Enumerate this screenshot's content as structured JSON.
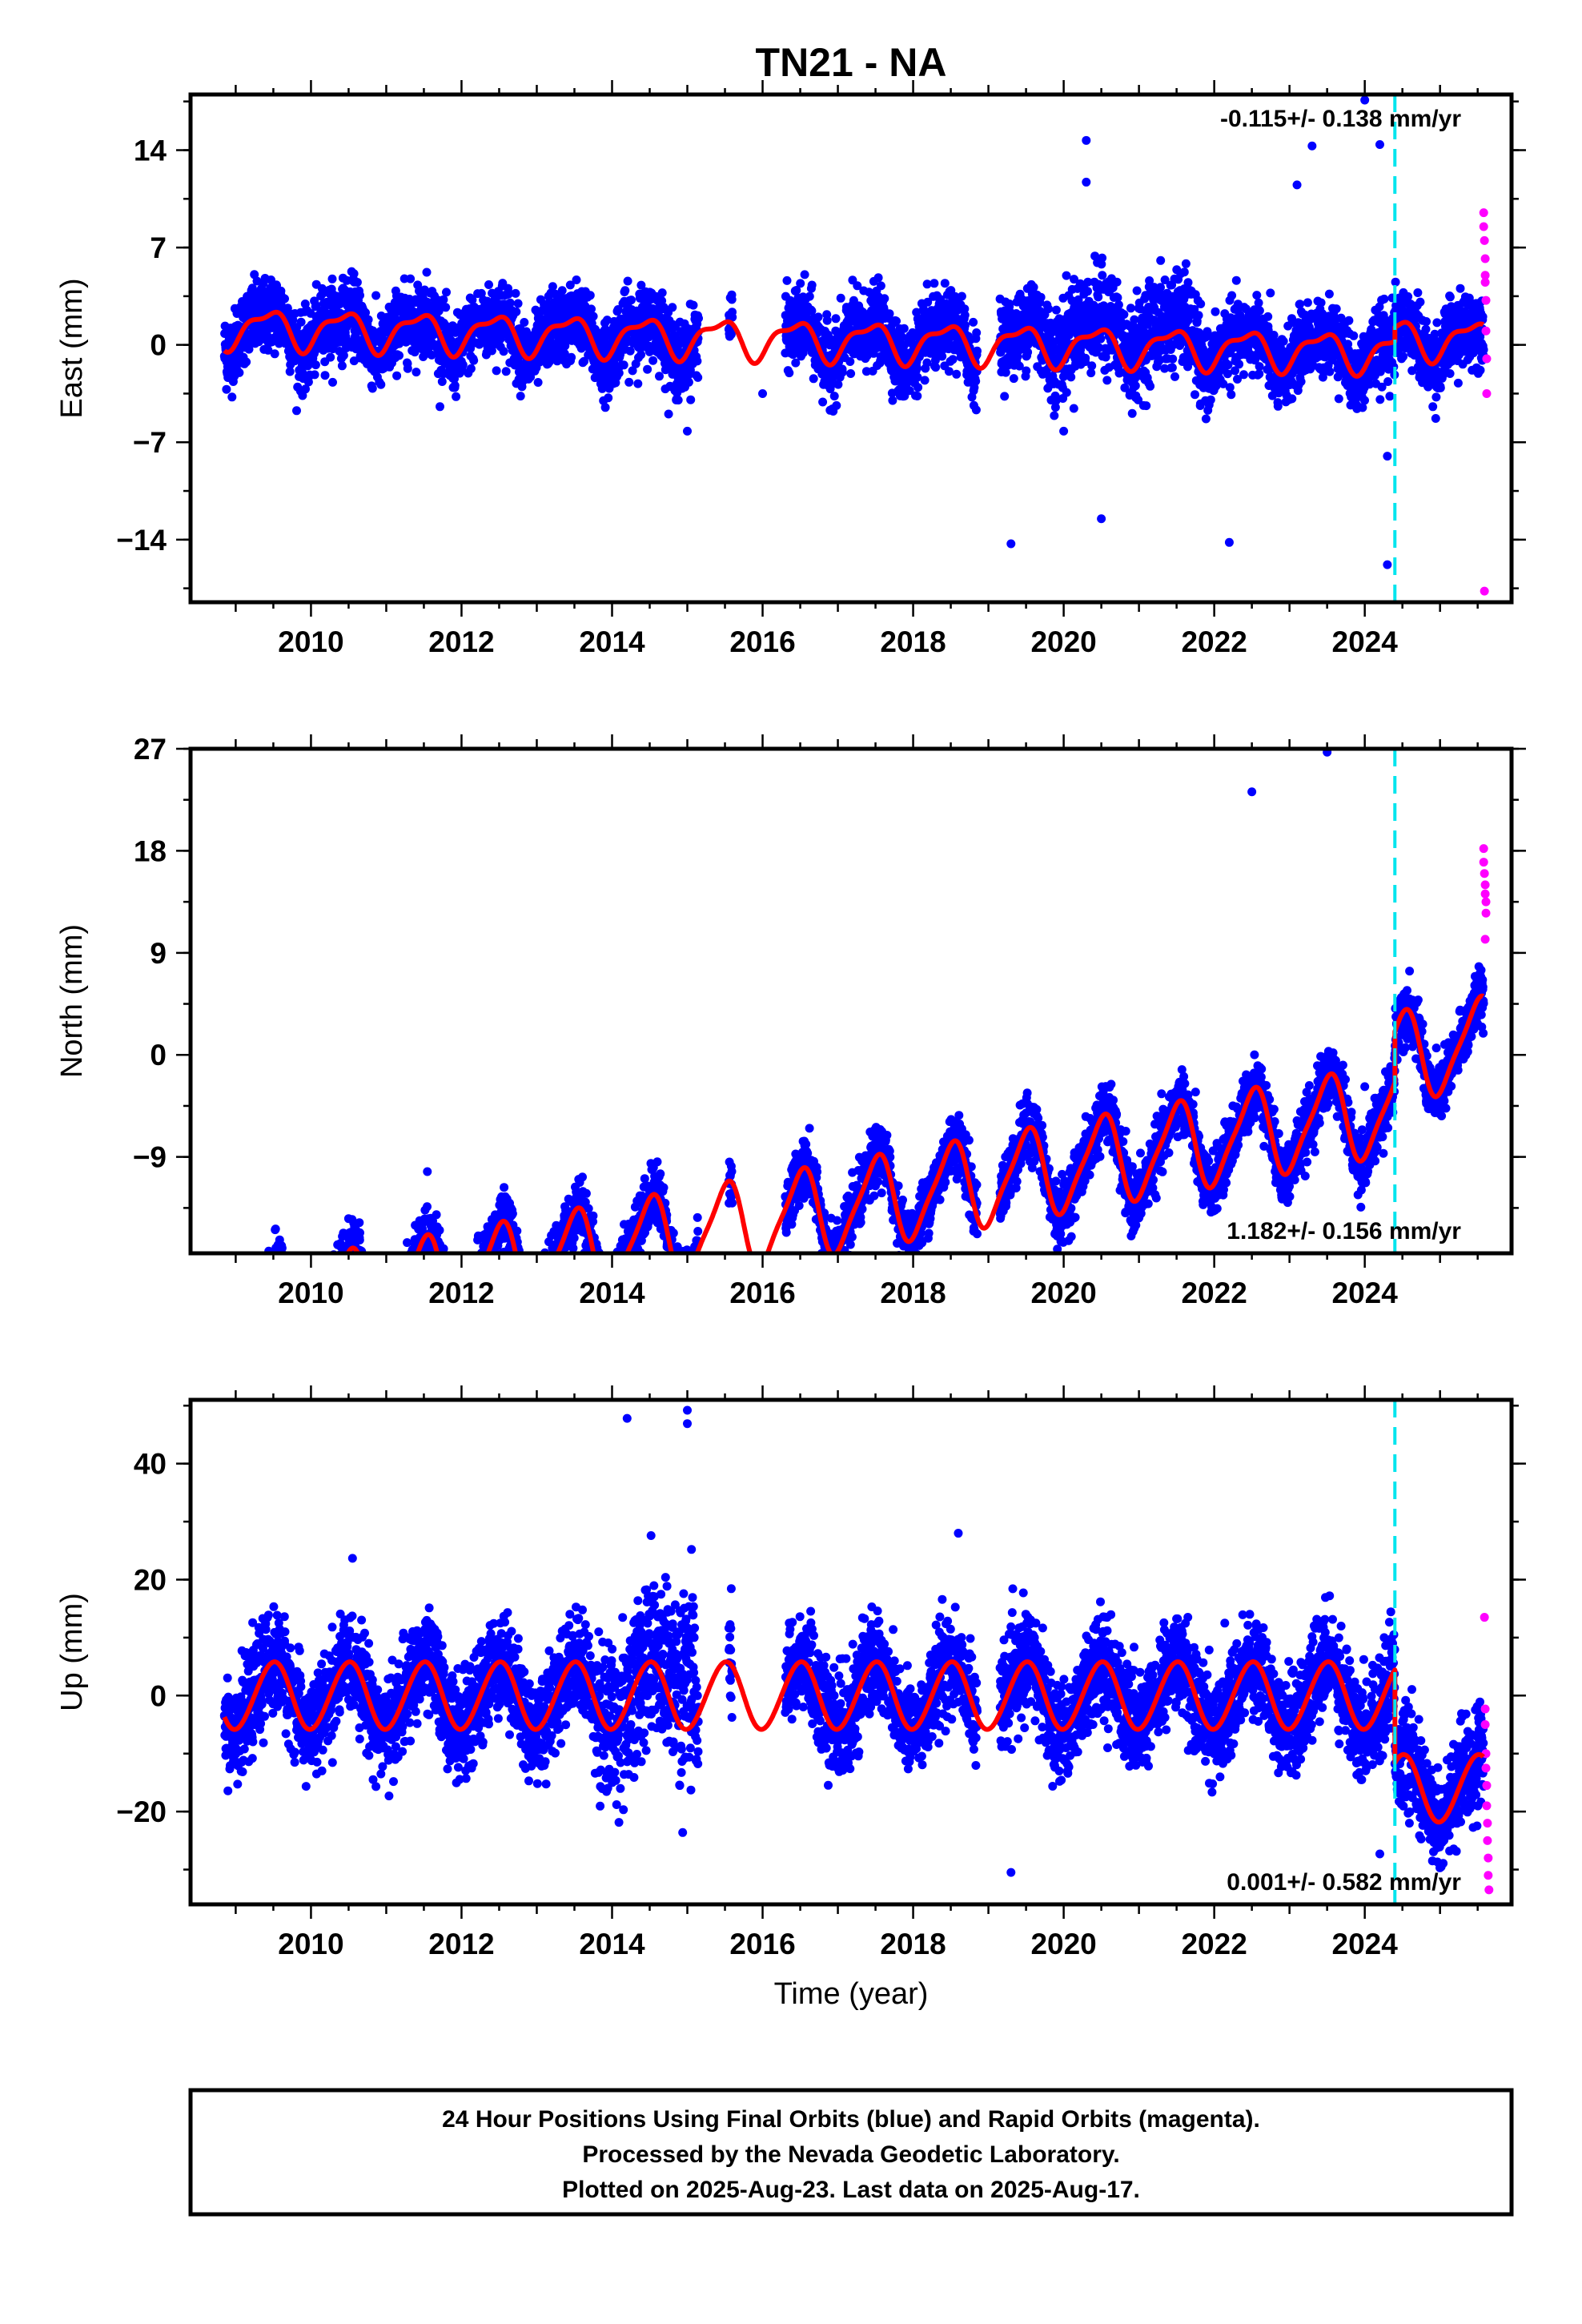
{
  "title": "TN21 - NA",
  "xlabel": "Time (year)",
  "caption": [
    "24 Hour Positions Using Final Orbits (blue) and Rapid Orbits (magenta).",
    "Processed by the Nevada Geodetic Laboratory.",
    "Plotted on 2025-Aug-23. Last data on 2025-Aug-17."
  ],
  "colors": {
    "final": "#0000ff",
    "rapid": "#ff00ff",
    "model": "#ff0000",
    "break": "#00e5ee"
  },
  "chart_data": [
    {
      "type": "scatter",
      "name": "east",
      "ylabel": "East (mm)",
      "rate_text": "-0.115+/- 0.138 mm/yr",
      "rate_position": "top-right",
      "xlim": [
        2008.4,
        2025.95
      ],
      "ylim": [
        -18.5,
        18
      ],
      "xticks": [
        2010,
        2012,
        2014,
        2016,
        2018,
        2020,
        2022,
        2024
      ],
      "yticks": [
        -14,
        -7,
        0,
        7,
        14
      ],
      "break_epoch": 2024.4,
      "model": {
        "offset": 0.3,
        "trend_mm_per_yr": -0.115,
        "annual_amp": 1.3,
        "annual_phase": 0.5,
        "semiannual_amp": 0.5,
        "step_at_break": 1.0
      },
      "scatter_sd": 1.3,
      "outliers": [
        [
          2019.3,
          -14.3
        ],
        [
          2020.3,
          14.7
        ],
        [
          2020.3,
          11.7
        ],
        [
          2020.5,
          -12.5
        ],
        [
          2022.2,
          -14.2
        ],
        [
          2023.1,
          11.5
        ],
        [
          2023.3,
          14.3
        ],
        [
          2024.0,
          17.6
        ],
        [
          2024.2,
          14.4
        ],
        [
          2024.3,
          -15.8
        ],
        [
          2024.3,
          -8.0
        ],
        [
          2015.0,
          -6.2
        ],
        [
          2020.0,
          -6.2
        ],
        [
          2016.0,
          -3.5
        ]
      ],
      "rapid_points": [
        [
          2025.58,
          9.5
        ],
        [
          2025.58,
          8.5
        ],
        [
          2025.59,
          7.5
        ],
        [
          2025.6,
          6.2
        ],
        [
          2025.6,
          5.0
        ],
        [
          2025.6,
          4.5
        ],
        [
          2025.61,
          3.2
        ],
        [
          2025.61,
          1.0
        ],
        [
          2025.62,
          -1.0
        ],
        [
          2025.62,
          -3.5
        ],
        [
          2025.59,
          -17.7
        ]
      ],
      "gaps": [
        [
          2015.15,
          2015.55
        ],
        [
          2015.6,
          2016.3
        ],
        [
          2018.85,
          2019.15
        ]
      ]
    },
    {
      "type": "scatter",
      "name": "north",
      "ylabel": "North (mm)",
      "rate_text": "1.182+/- 0.156 mm/yr",
      "rate_position": "bottom-right",
      "xlim": [
        2008.4,
        2025.95
      ],
      "ylim": [
        -17.5,
        27
      ],
      "xticks": [
        2010,
        2012,
        2014,
        2016,
        2018,
        2020,
        2022,
        2024
      ],
      "yticks": [
        -9,
        0,
        9,
        18,
        27
      ],
      "break_epoch": 2024.4,
      "model": {
        "offset": -13.5,
        "trend_mm_per_yr": 1.182,
        "annual_amp": 3.8,
        "annual_phase": 0.0,
        "semiannual_amp": 0.8,
        "step_at_break": 4.5
      },
      "scatter_sd": 1.3,
      "outliers": [
        [
          2023.5,
          26.7
        ],
        [
          2022.5,
          23.2
        ],
        [
          2023.1,
          -5.8
        ],
        [
          2024.1,
          -5.8
        ],
        [
          2024.0,
          -2.8
        ]
      ],
      "rapid_points": [
        [
          2025.58,
          18.2
        ],
        [
          2025.58,
          17.0
        ],
        [
          2025.59,
          16.0
        ],
        [
          2025.6,
          15.0
        ],
        [
          2025.6,
          14.2
        ],
        [
          2025.61,
          13.5
        ],
        [
          2025.61,
          12.5
        ],
        [
          2025.6,
          10.2
        ]
      ],
      "gaps": [
        [
          2015.15,
          2015.55
        ],
        [
          2015.6,
          2016.3
        ],
        [
          2018.85,
          2019.15
        ]
      ]
    },
    {
      "type": "scatter",
      "name": "up",
      "ylabel": "Up (mm)",
      "rate_text": "0.001+/- 0.582 mm/yr",
      "rate_position": "bottom-right",
      "xlim": [
        2008.4,
        2025.95
      ],
      "ylim": [
        -36,
        51
      ],
      "xticks": [
        2010,
        2012,
        2014,
        2016,
        2018,
        2020,
        2022,
        2024
      ],
      "yticks": [
        -20,
        0,
        20,
        40
      ],
      "break_epoch": 2024.4,
      "model": {
        "offset": 0,
        "trend_mm_per_yr": 0.001,
        "annual_amp": 5.8,
        "annual_phase": 0.0,
        "semiannual_amp": 0.3,
        "step_at_break": -16
      },
      "scatter_sd": 4.2,
      "outliers": [
        [
          2014.2,
          47.8
        ],
        [
          2015.0,
          49.2
        ],
        [
          2015.0,
          46.9
        ],
        [
          2018.6,
          28.0
        ],
        [
          2019.3,
          -30.5
        ],
        [
          2014.9,
          -15.5
        ],
        [
          2024.2,
          -27.3
        ]
      ],
      "rapid_points": [
        [
          2025.59,
          13.5
        ],
        [
          2025.6,
          -2.3
        ],
        [
          2025.6,
          -5.0
        ],
        [
          2025.61,
          -10.0
        ],
        [
          2025.61,
          -12.5
        ],
        [
          2025.62,
          -15.5
        ],
        [
          2025.62,
          -19.0
        ],
        [
          2025.63,
          -22.0
        ],
        [
          2025.63,
          -25.0
        ],
        [
          2025.64,
          -28.0
        ],
        [
          2025.64,
          -31.0
        ],
        [
          2025.65,
          -33.5
        ]
      ],
      "gaps": [
        [
          2015.15,
          2015.55
        ],
        [
          2015.6,
          2016.3
        ],
        [
          2018.85,
          2019.15
        ]
      ]
    }
  ]
}
